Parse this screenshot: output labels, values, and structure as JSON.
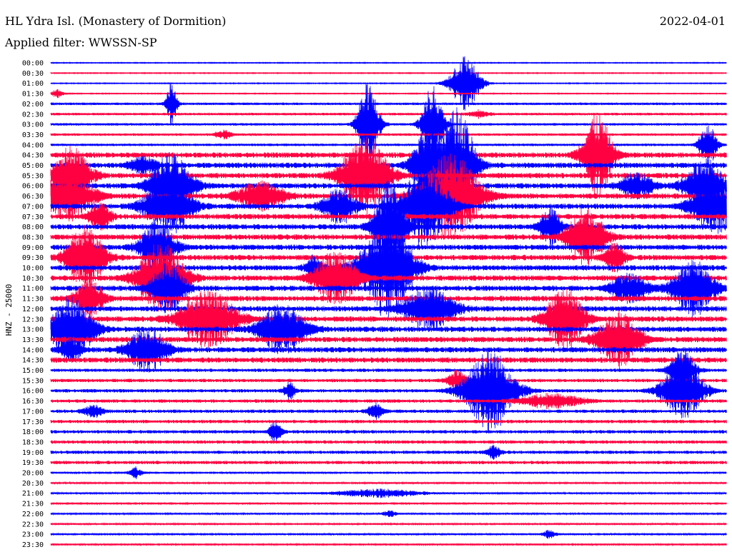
{
  "header": {
    "station": "HL Ydra Isl. (Monastery of Dormition)",
    "filter": "Applied filter: WWSSN-SP",
    "date": "2022-04-01"
  },
  "colors": {
    "trace_a": "#0000ff",
    "trace_b": "#ff0040",
    "text": "#000000"
  },
  "chart_data": {
    "type": "line",
    "title": "HL Ydra Isl. (Monastery of Dormition)",
    "subtitle": "Applied filter: WWSSN-SP",
    "ylabel": "HNZ - 25000",
    "xlabel": "",
    "grid": false,
    "legend": "none",
    "description_free": true,
    "categories": [
      "00:00",
      "00:30",
      "01:00",
      "01:30",
      "02:00",
      "02:30",
      "03:00",
      "03:30",
      "04:00",
      "04:30",
      "05:00",
      "05:30",
      "06:00",
      "06:30",
      "07:00",
      "07:30",
      "08:00",
      "08:30",
      "09:00",
      "09:30",
      "10:00",
      "10:30",
      "11:00",
      "11:30",
      "12:00",
      "12:30",
      "13:00",
      "13:30",
      "14:00",
      "14:30",
      "15:00",
      "15:30",
      "16:00",
      "16:30",
      "17:00",
      "17:30",
      "18:00",
      "18:30",
      "19:00",
      "19:30",
      "20:00",
      "20:30",
      "21:00",
      "21:30",
      "22:00",
      "22:30",
      "23:00",
      "23:30"
    ],
    "series": [
      {
        "color": "#0000ff",
        "rows": "even"
      },
      {
        "color": "#ff0040",
        "rows": "odd"
      }
    ]
  }
}
